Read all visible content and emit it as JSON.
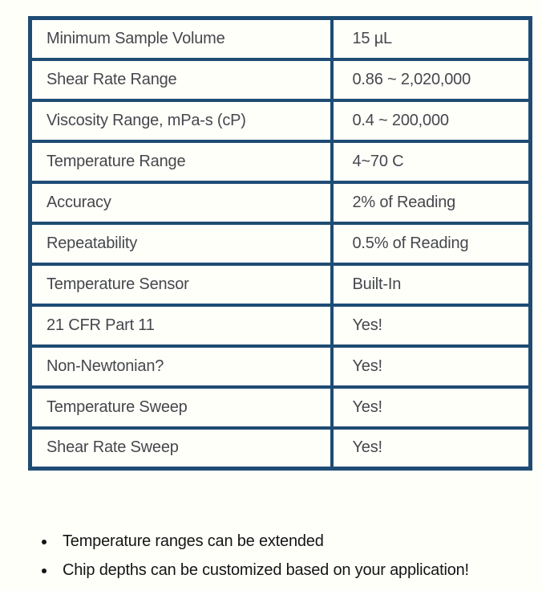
{
  "table": {
    "rows": [
      {
        "label": "Minimum Sample Volume",
        "value": "15 µL"
      },
      {
        "label": "Shear Rate Range",
        "value": "0.86 ~ 2,020,000"
      },
      {
        "label": "Viscosity Range, mPa-s (cP)",
        "value": "0.4 ~ 200,000"
      },
      {
        "label": "Temperature Range",
        "value": "4~70 C"
      },
      {
        "label": "Accuracy",
        "value": "2% of Reading"
      },
      {
        "label": "Repeatability",
        "value": "0.5% of Reading"
      },
      {
        "label": "Temperature Sensor",
        "value": "Built-In"
      },
      {
        "label": "21 CFR Part 11",
        "value": "Yes!"
      },
      {
        "label": "Non-Newtonian?",
        "value": "Yes!"
      },
      {
        "label": "Temperature Sweep",
        "value": "Yes!"
      },
      {
        "label": "Shear Rate Sweep",
        "value": "Yes!"
      }
    ]
  },
  "notes": {
    "items": [
      "Temperature ranges can be extended",
      "Chip depths can be customized based on your application!"
    ]
  },
  "colors": {
    "table_border": "#1e4c74",
    "cell_text": "#45474c",
    "note_text": "#151515",
    "background": "#fffffa"
  }
}
